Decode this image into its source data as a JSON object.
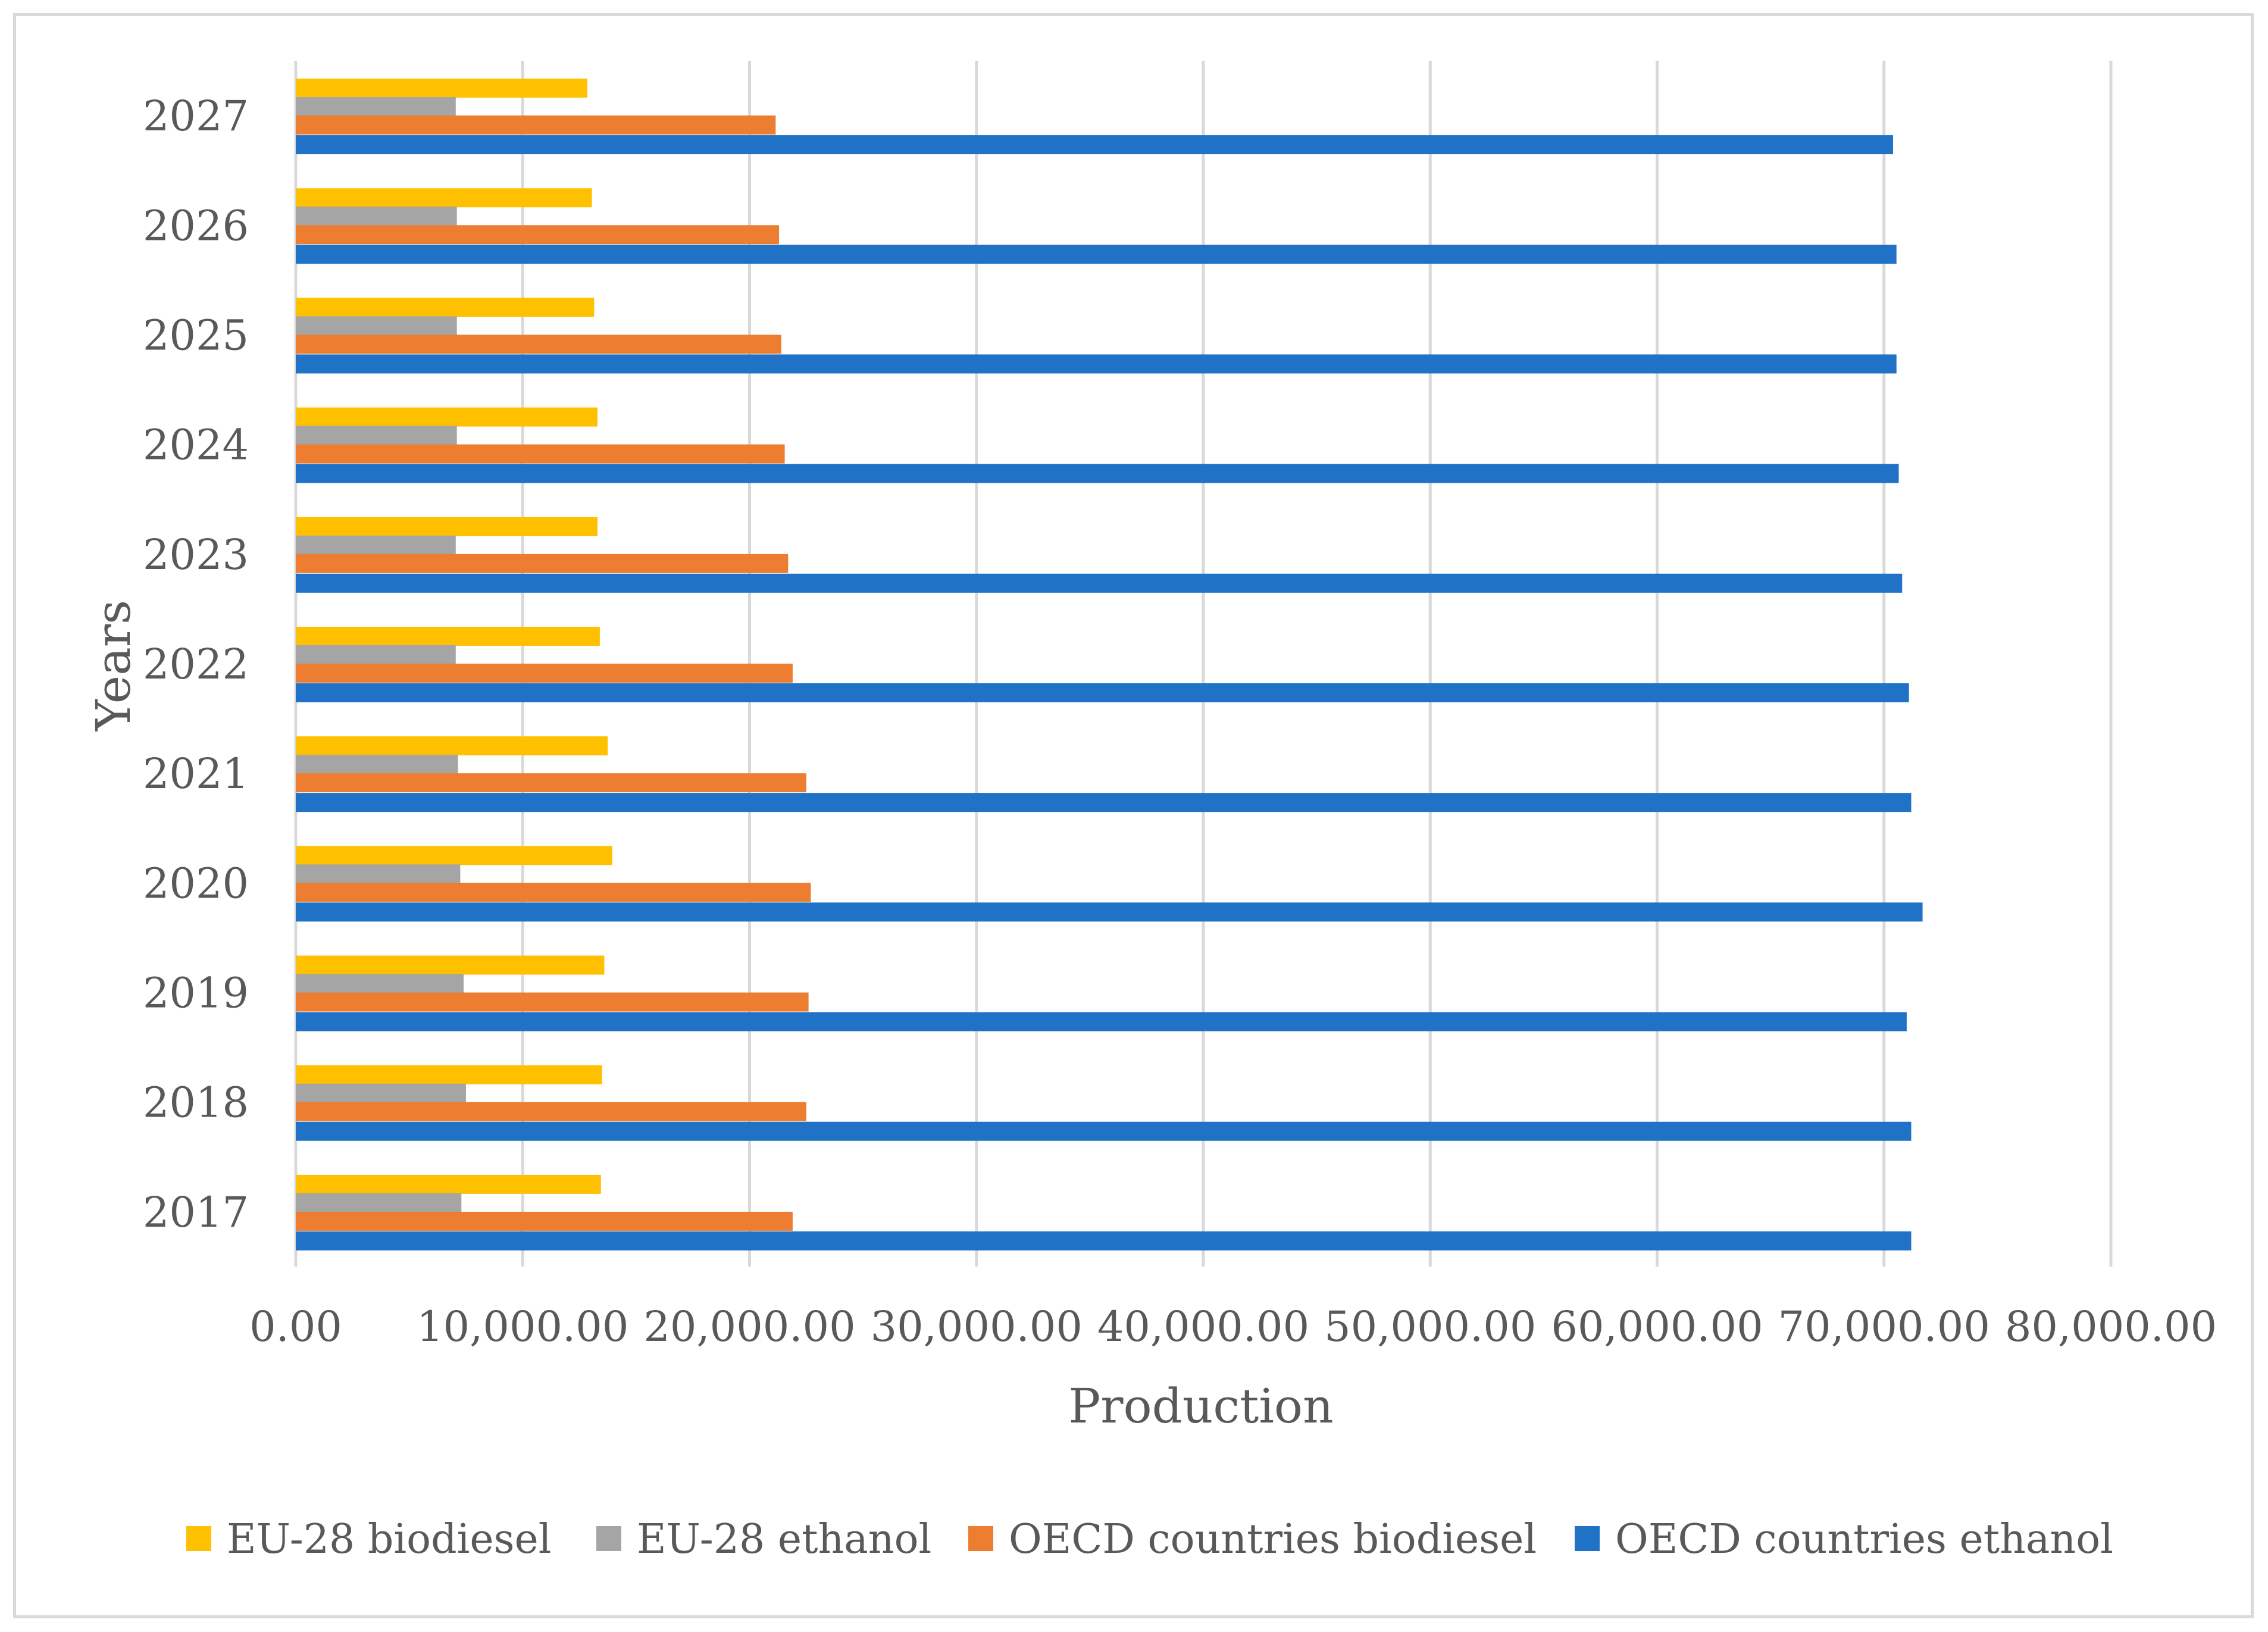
{
  "chart_data": {
    "type": "bar",
    "orientation": "horizontal",
    "title": "",
    "xlabel": "Production",
    "ylabel": "Years",
    "xlim": [
      0,
      80000
    ],
    "x_ticks": [
      "0.00",
      "10,000.00",
      "20,000.00",
      "30,000.00",
      "40,000.00",
      "50,000.00",
      "60,000.00",
      "70,000.00",
      "80,000.00"
    ],
    "x_tick_values": [
      0,
      10000,
      20000,
      30000,
      40000,
      50000,
      60000,
      70000,
      80000
    ],
    "grid": "vertical",
    "legend_position": "bottom",
    "categories": [
      "2017",
      "2018",
      "2019",
      "2020",
      "2021",
      "2022",
      "2023",
      "2024",
      "2025",
      "2026",
      "2027"
    ],
    "series": [
      {
        "name": "EU-28 biodiesel",
        "color": "#FFC000",
        "values": [
          13450,
          13500,
          13600,
          13950,
          13750,
          13400,
          13300,
          13300,
          13150,
          13050,
          12850
        ]
      },
      {
        "name": "EU-28 ethanol",
        "color": "#A5A5A5",
        "values": [
          7300,
          7500,
          7400,
          7250,
          7150,
          7050,
          7050,
          7100,
          7100,
          7100,
          7050
        ]
      },
      {
        "name": "OECD countries biodiesel",
        "color": "#ED7D31",
        "values": [
          21900,
          22500,
          22600,
          22700,
          22500,
          21900,
          21700,
          21550,
          21400,
          21300,
          21150
        ]
      },
      {
        "name": "OECD countries ethanol",
        "color": "#1F72C6",
        "values": [
          71200,
          71200,
          71000,
          71700,
          71200,
          71100,
          70800,
          70650,
          70550,
          70550,
          70400
        ]
      }
    ]
  }
}
